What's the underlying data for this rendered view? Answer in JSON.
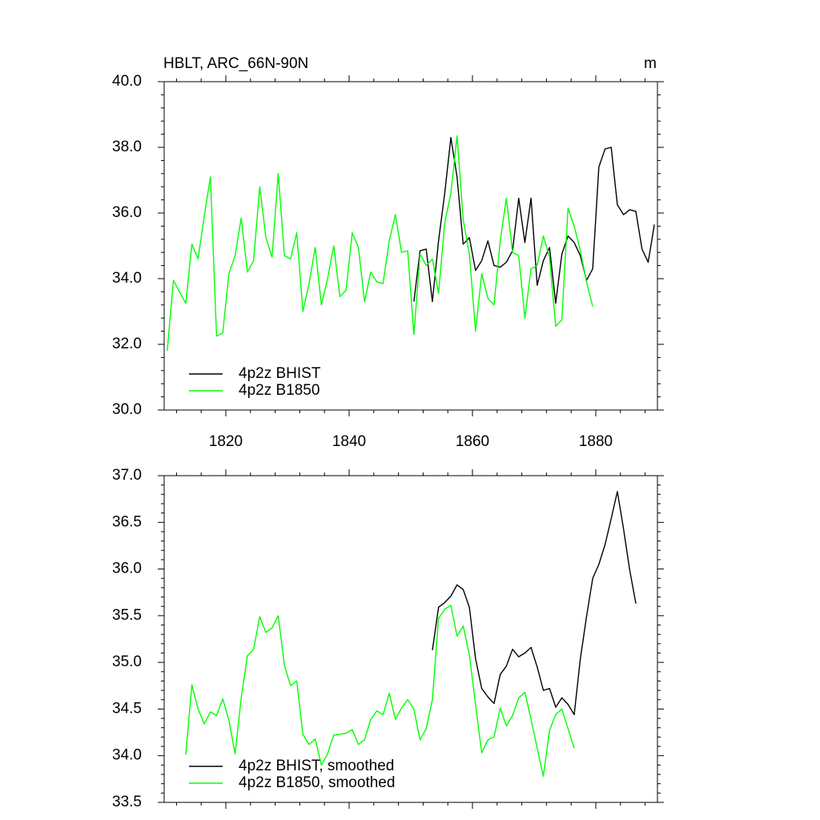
{
  "chart_data": [
    {
      "type": "line",
      "title": "HBLT, ARC_66N-90N",
      "units": "m",
      "xlim": [
        1810,
        1890
      ],
      "xticks": [
        1820,
        1840,
        1860,
        1880
      ],
      "ylim": [
        30,
        40
      ],
      "yticks": [
        {
          "value": 30,
          "label": "30.0"
        },
        {
          "value": 32,
          "label": "32.0"
        },
        {
          "value": 34,
          "label": "34.0"
        },
        {
          "value": 36,
          "label": "36.0"
        },
        {
          "value": 38,
          "label": "38.0"
        },
        {
          "value": 40,
          "label": "40.0"
        }
      ],
      "legend": "lower left",
      "series": [
        {
          "name": "4p2z BHIST",
          "color": "#000000",
          "x": [
            1850.5,
            1851.5,
            1852.5,
            1853.5,
            1854.5,
            1855.5,
            1856.5,
            1857.5,
            1858.5,
            1859.5,
            1860.5,
            1861.5,
            1862.5,
            1863.5,
            1864.5,
            1865.5,
            1866.5,
            1867.5,
            1868.5,
            1869.5,
            1870.5,
            1871.5,
            1872.5,
            1873.5,
            1874.5,
            1875.5,
            1876.5,
            1877.5,
            1878.5,
            1879.5,
            1880.5,
            1881.5,
            1882.5,
            1883.5,
            1884.5,
            1885.5,
            1886.5,
            1887.5,
            1888.5,
            1889.5
          ],
          "values": [
            33.3,
            34.85,
            34.9,
            33.3,
            35.15,
            36.6,
            38.3,
            37.1,
            35.05,
            35.25,
            34.25,
            34.55,
            35.15,
            34.4,
            34.35,
            34.5,
            34.85,
            36.45,
            35.1,
            36.45,
            33.8,
            34.55,
            34.95,
            33.25,
            34.75,
            35.3,
            35.1,
            34.7,
            33.95,
            34.3,
            37.4,
            37.95,
            38.0,
            36.25,
            35.95,
            36.1,
            36.05,
            34.9,
            34.5,
            35.65
          ]
        },
        {
          "name": "4p2z B1850",
          "color": "#00ff00",
          "x": [
            1810.5,
            1811.5,
            1812.5,
            1813.5,
            1814.5,
            1815.5,
            1816.5,
            1817.5,
            1818.5,
            1819.5,
            1820.5,
            1821.5,
            1822.5,
            1823.5,
            1824.5,
            1825.5,
            1826.5,
            1827.5,
            1828.5,
            1829.5,
            1830.5,
            1831.5,
            1832.5,
            1833.5,
            1834.5,
            1835.5,
            1836.5,
            1837.5,
            1838.5,
            1839.5,
            1840.5,
            1841.5,
            1842.5,
            1843.5,
            1844.5,
            1845.5,
            1846.5,
            1847.5,
            1848.5,
            1849.5,
            1850.5,
            1851.5,
            1852.5,
            1853.5,
            1854.5,
            1855.5,
            1856.5,
            1857.5,
            1858.5,
            1859.5,
            1860.5,
            1861.5,
            1862.5,
            1863.5,
            1864.5,
            1865.5,
            1866.5,
            1867.5,
            1868.5,
            1869.5,
            1870.5,
            1871.5,
            1872.5,
            1873.5,
            1874.5,
            1875.5,
            1876.5,
            1877.5,
            1878.5,
            1879.5
          ],
          "values": [
            31.8,
            33.95,
            33.6,
            33.25,
            35.05,
            34.6,
            35.9,
            37.1,
            32.25,
            32.35,
            34.15,
            34.7,
            35.85,
            34.2,
            34.55,
            36.8,
            35.25,
            34.65,
            37.2,
            34.7,
            34.6,
            35.4,
            33.0,
            33.85,
            34.95,
            33.2,
            34.0,
            35.0,
            33.45,
            33.65,
            35.4,
            34.95,
            33.3,
            34.2,
            33.9,
            33.85,
            35.15,
            35.95,
            34.8,
            34.85,
            32.3,
            34.75,
            34.4,
            34.6,
            33.55,
            35.7,
            36.6,
            38.35,
            35.8,
            34.75,
            32.4,
            34.15,
            33.4,
            33.2,
            35.15,
            36.45,
            34.8,
            34.7,
            32.8,
            34.3,
            34.4,
            35.3,
            34.65,
            32.55,
            32.75,
            36.15,
            35.6,
            34.85,
            33.9,
            33.15
          ]
        }
      ]
    },
    {
      "type": "line",
      "xlim": [
        1810,
        1890
      ],
      "xticks": [
        1820,
        1840,
        1860,
        1880
      ],
      "xtick_labels": false,
      "ylim": [
        33.5,
        37
      ],
      "yticks": [
        {
          "value": 33.5,
          "label": "33.5"
        },
        {
          "value": 34,
          "label": "34.0"
        },
        {
          "value": 34.5,
          "label": "34.5"
        },
        {
          "value": 35,
          "label": "35.0"
        },
        {
          "value": 35.5,
          "label": "35.5"
        },
        {
          "value": 36,
          "label": "36.0"
        },
        {
          "value": 36.5,
          "label": "36.5"
        },
        {
          "value": 37,
          "label": "37.0"
        }
      ],
      "legend": "lower left",
      "series": [
        {
          "name": "4p2z BHIST, smoothed",
          "color": "#000000",
          "x": [
            1853.5,
            1854.5,
            1855.5,
            1856.5,
            1857.5,
            1858.5,
            1859.5,
            1860.5,
            1861.5,
            1862.5,
            1863.5,
            1864.5,
            1865.5,
            1866.5,
            1867.5,
            1868.5,
            1869.5,
            1870.5,
            1871.5,
            1872.5,
            1873.5,
            1874.5,
            1875.5,
            1876.5,
            1877.5,
            1878.5,
            1879.5,
            1880.5,
            1881.5,
            1882.5,
            1883.5,
            1884.5,
            1885.5,
            1886.5
          ],
          "values": [
            35.13,
            35.59,
            35.64,
            35.71,
            35.83,
            35.78,
            35.59,
            35.04,
            34.72,
            34.63,
            34.56,
            34.87,
            34.96,
            35.14,
            35.06,
            35.1,
            35.16,
            34.95,
            34.7,
            34.72,
            34.52,
            34.62,
            34.55,
            34.44,
            35.04,
            35.49,
            35.9,
            36.05,
            36.26,
            36.54,
            36.83,
            36.43,
            35.99,
            35.63
          ]
        },
        {
          "name": "4p2z B1850, smoothed",
          "color": "#00ff00",
          "x": [
            1813.5,
            1814.5,
            1815.5,
            1816.5,
            1817.5,
            1818.5,
            1819.5,
            1820.5,
            1821.5,
            1822.5,
            1823.5,
            1824.5,
            1825.5,
            1826.5,
            1827.5,
            1828.5,
            1829.5,
            1830.5,
            1831.5,
            1832.5,
            1833.5,
            1834.5,
            1835.5,
            1836.5,
            1837.5,
            1838.5,
            1839.5,
            1840.5,
            1841.5,
            1842.5,
            1843.5,
            1844.5,
            1845.5,
            1846.5,
            1847.5,
            1848.5,
            1849.5,
            1850.5,
            1851.5,
            1852.5,
            1853.5,
            1854.5,
            1855.5,
            1856.5,
            1857.5,
            1858.5,
            1859.5,
            1860.5,
            1861.5,
            1862.5,
            1863.5,
            1864.5,
            1865.5,
            1866.5,
            1867.5,
            1868.5,
            1869.5,
            1870.5,
            1871.5,
            1872.5,
            1873.5,
            1874.5,
            1875.5,
            1876.5
          ],
          "values": [
            34.01,
            34.76,
            34.5,
            34.34,
            34.47,
            34.43,
            34.61,
            34.38,
            34.02,
            34.62,
            35.07,
            35.14,
            35.49,
            35.32,
            35.37,
            35.5,
            34.97,
            34.75,
            34.8,
            34.23,
            34.12,
            34.18,
            33.9,
            34.02,
            34.22,
            34.23,
            34.24,
            34.28,
            34.12,
            34.17,
            34.39,
            34.48,
            34.44,
            34.67,
            34.39,
            34.51,
            34.6,
            34.5,
            34.17,
            34.29,
            34.6,
            35.47,
            35.57,
            35.61,
            35.28,
            35.39,
            35.08,
            34.55,
            34.03,
            34.17,
            34.2,
            34.51,
            34.32,
            34.43,
            34.62,
            34.68,
            34.39,
            34.08,
            33.78,
            34.27,
            34.44,
            34.5,
            34.29,
            34.08
          ]
        }
      ]
    }
  ]
}
